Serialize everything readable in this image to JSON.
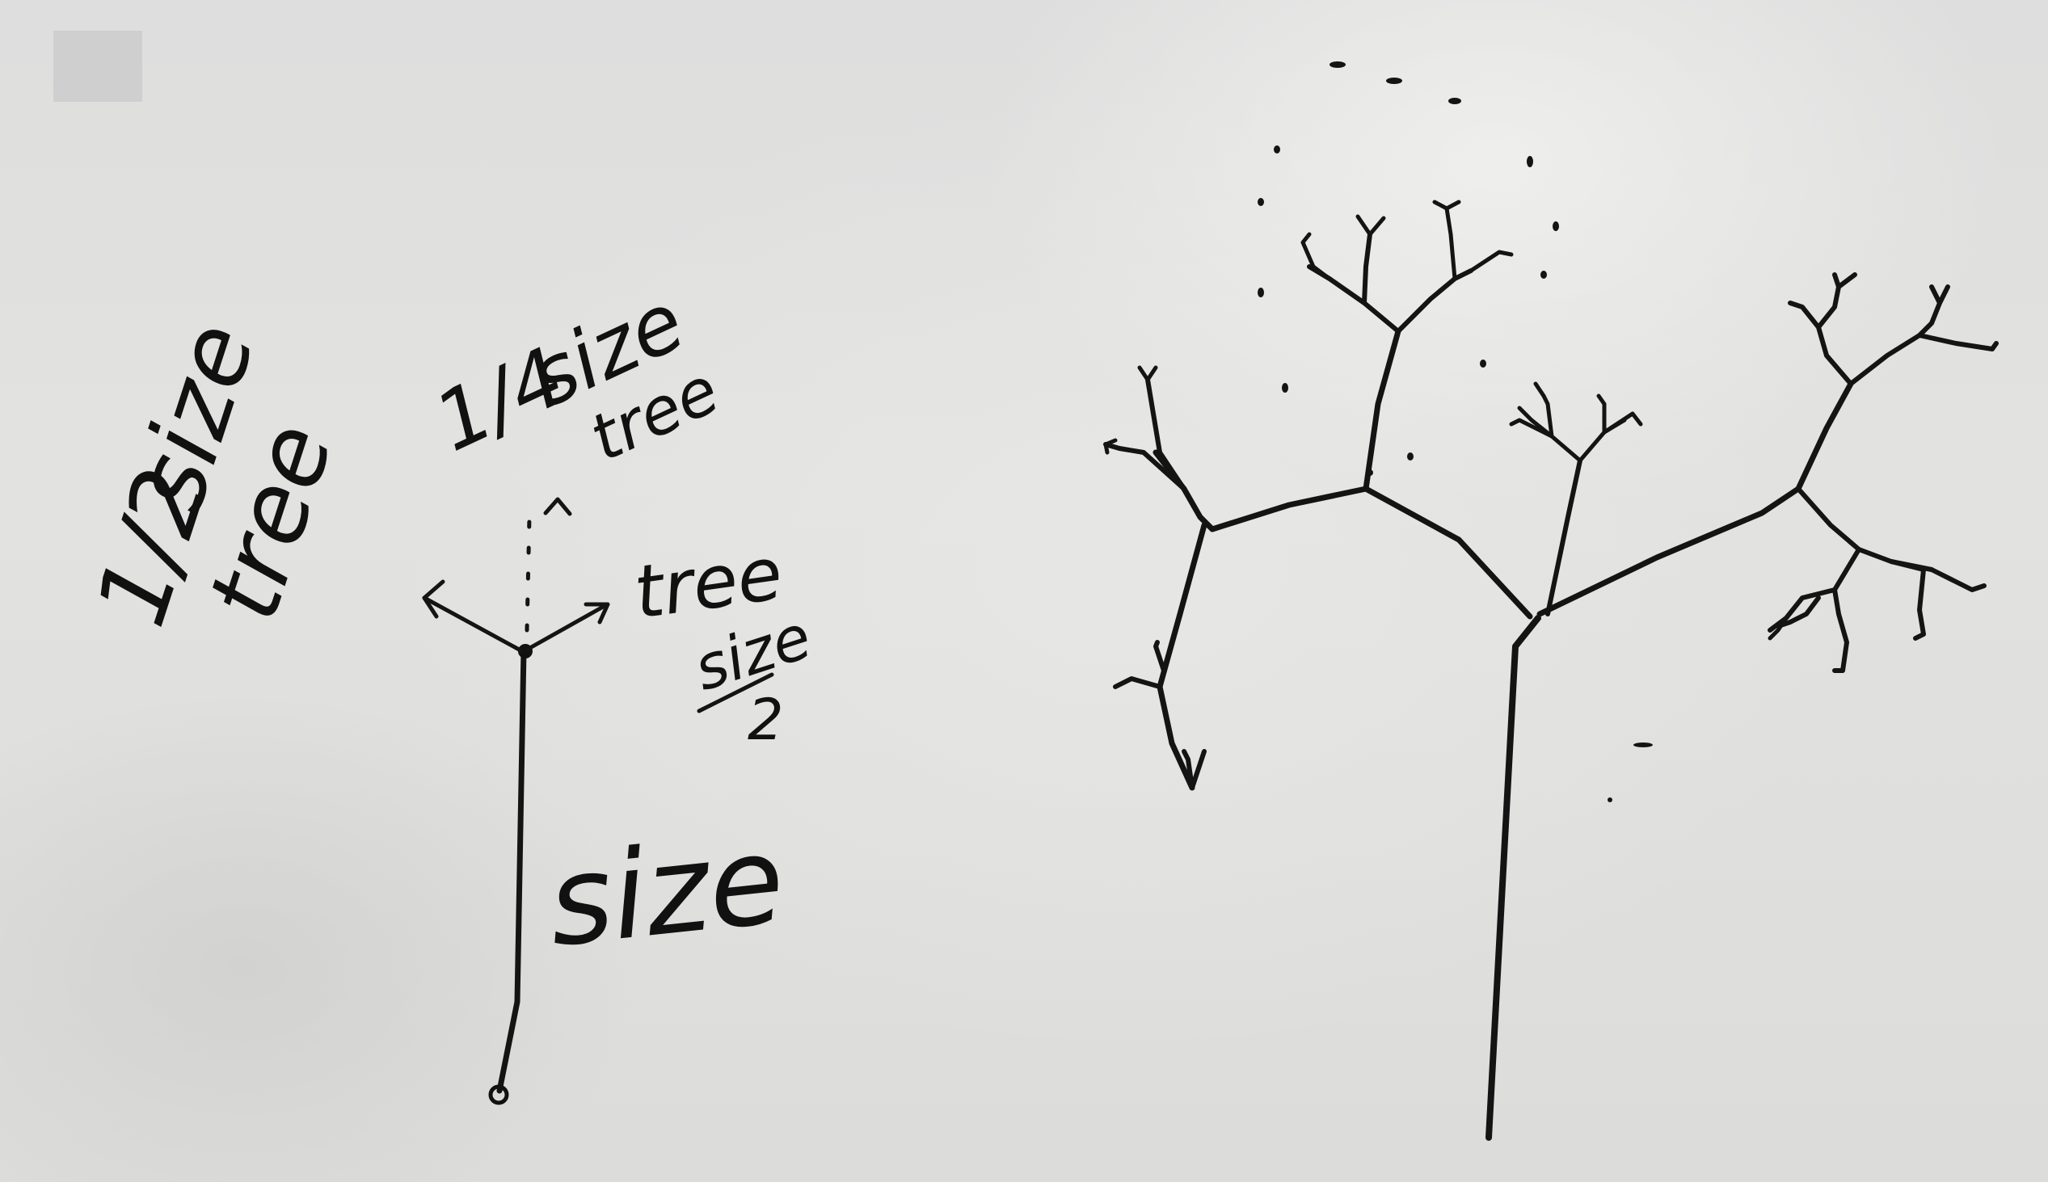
{
  "whiteboard": {
    "left_note": {
      "fraction": "1/2",
      "word1": "size",
      "word2": "tree"
    },
    "diagram": {
      "top_note_fraction": "1/4",
      "top_note_word1": "size",
      "top_note_word2": "tree",
      "right_note_word": "tree",
      "right_note_size": "size",
      "right_note_divisor": "2",
      "stem_label": "size"
    }
  }
}
